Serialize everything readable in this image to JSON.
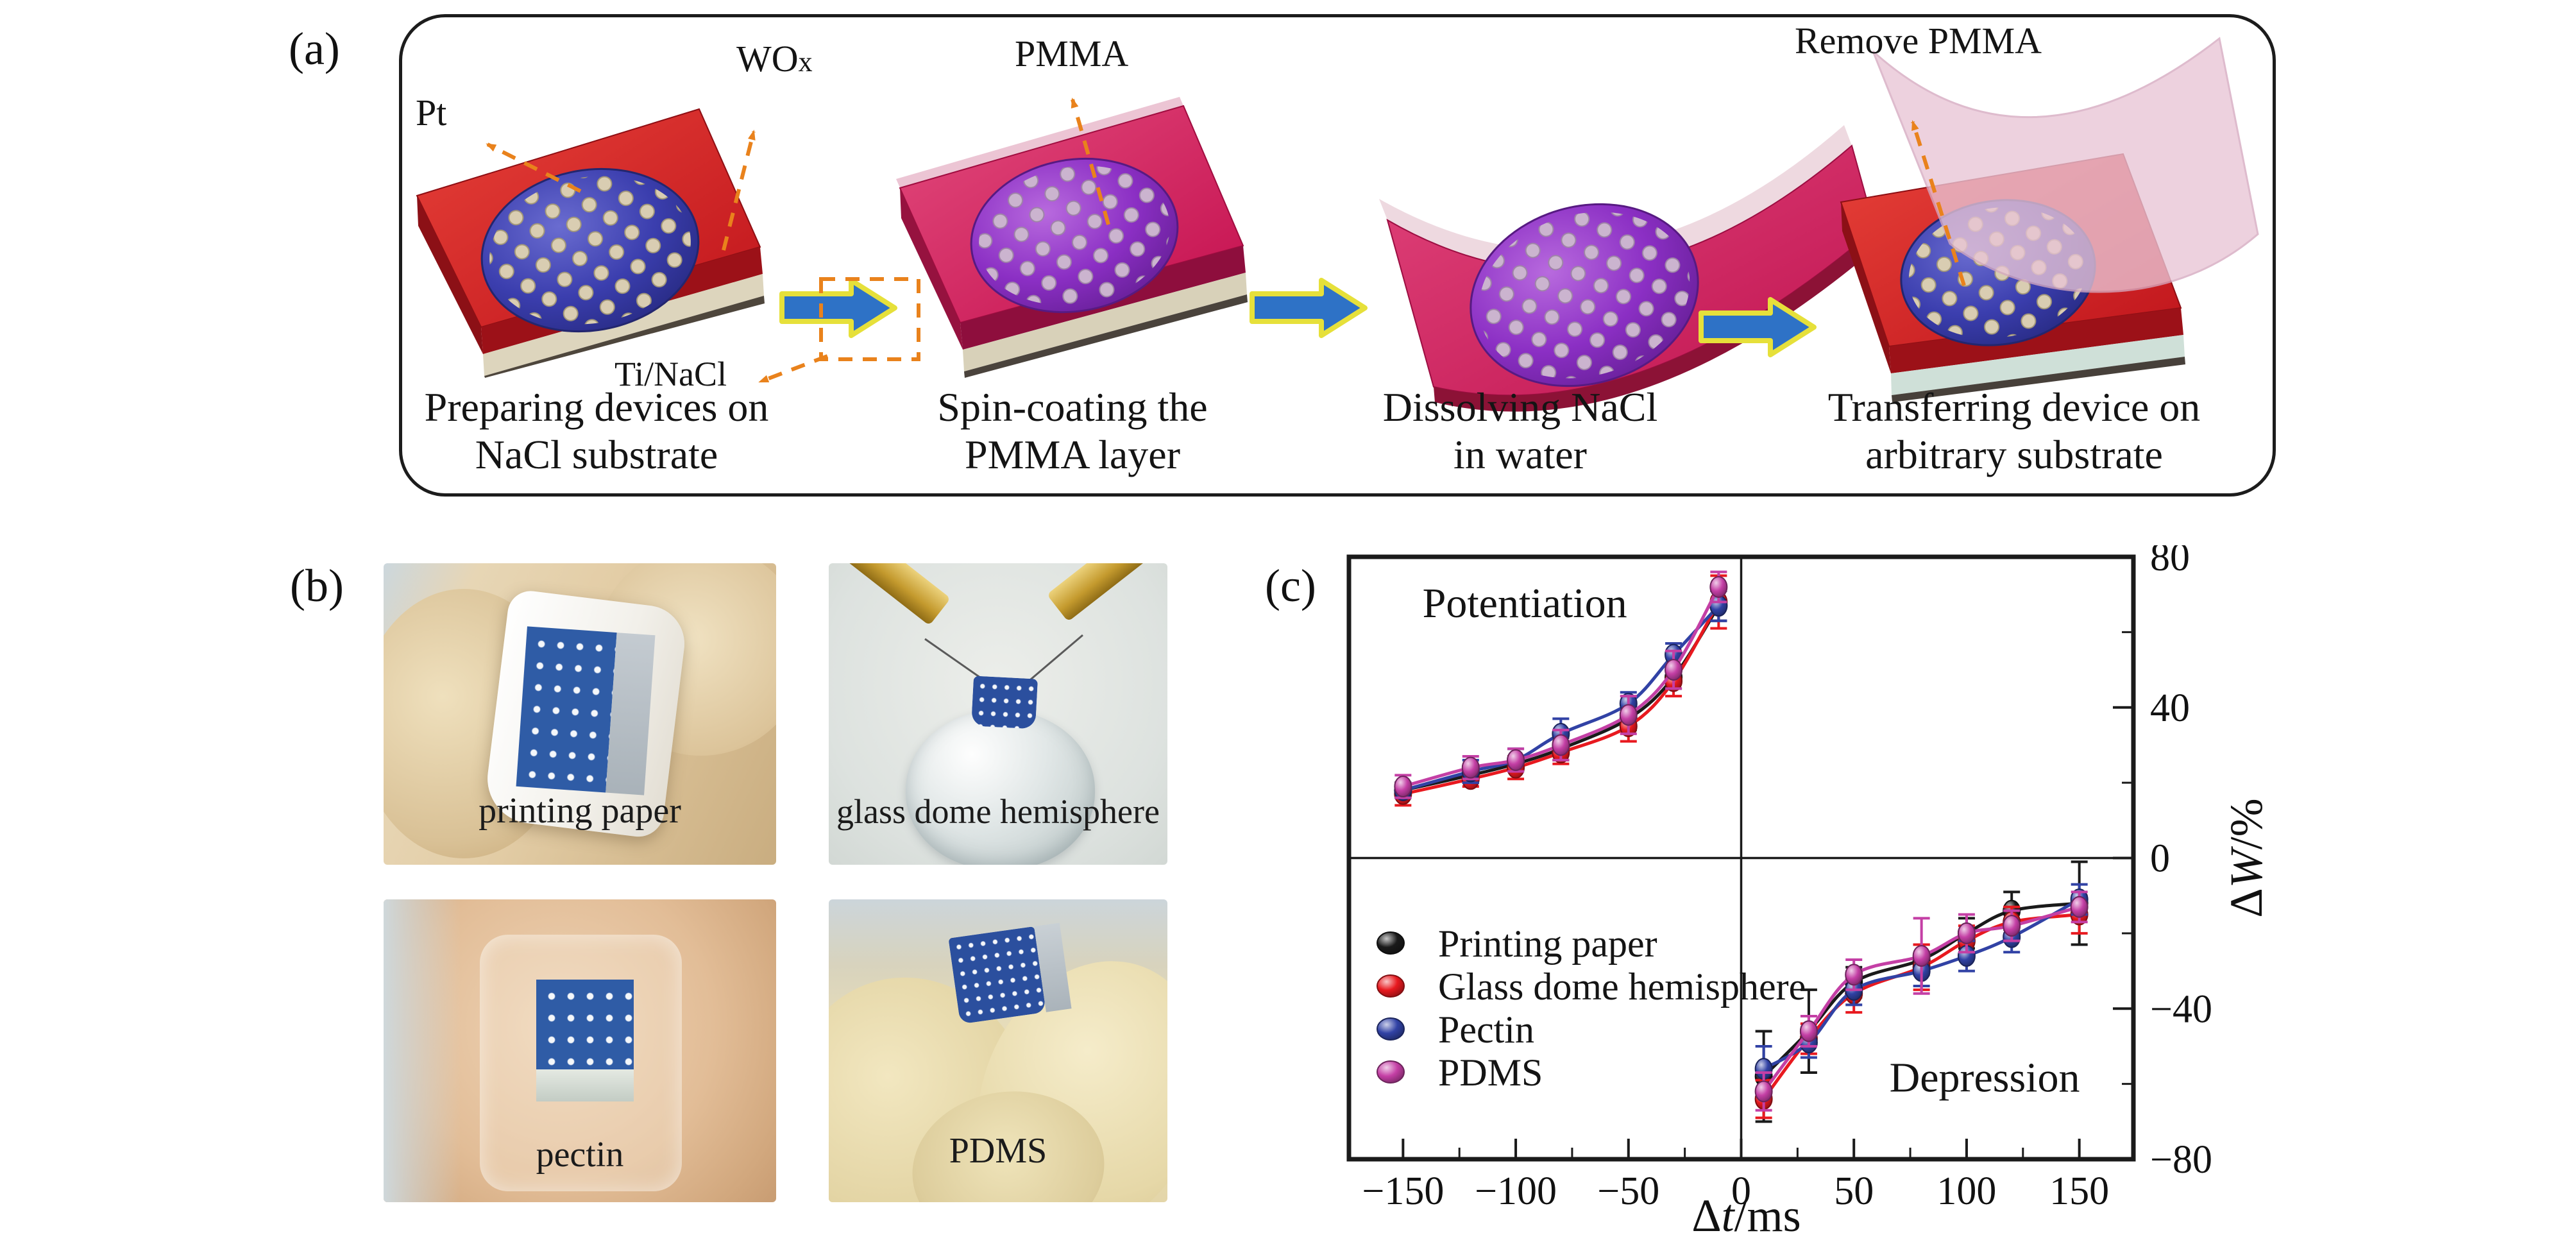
{
  "figure": {
    "background": "#ffffff",
    "accent_colors": {
      "process_arrow_fill": "#2e72c6",
      "process_arrow_outline": "#e6e03a",
      "annotation_orange": "#e9821c",
      "substrate_red": "#d31f26",
      "substrate_pink": "#d81b52",
      "wox_circle_blue": "#3b3eae",
      "pmma_circle_purple": "#8b2fc4",
      "nacl_layer_cream": "#ddd5bd"
    }
  },
  "panel_a": {
    "label": "(a)",
    "annotations": {
      "pt": "Pt",
      "wox_main": "WO",
      "wox_sub": "x",
      "ti_nacl": "Ti/NaCl",
      "pmma": "PMMA",
      "remove_pmma": "Remove PMMA"
    },
    "steps": [
      {
        "line1": "Preparing devices on",
        "line2": "NaCl substrate"
      },
      {
        "line1": "Spin-coating the",
        "line2": "PMMA layer"
      },
      {
        "line1": "Dissolving NaCl",
        "line2": "in water"
      },
      {
        "line1": "Transferring device on",
        "line2": "arbitrary substrate"
      }
    ]
  },
  "panel_b": {
    "label": "(b)",
    "photos": [
      {
        "caption": "printing paper"
      },
      {
        "caption": "glass dome hemisphere"
      },
      {
        "caption": "pectin"
      },
      {
        "caption": "PDMS"
      }
    ]
  },
  "panel_c": {
    "label": "(c)",
    "chart_data": {
      "type": "line",
      "xlabel": "Δt/ms",
      "ylabel": "ΔW/%",
      "xlim": [
        -174,
        174
      ],
      "ylim": [
        -80,
        80
      ],
      "x_major_ticks": [
        -150,
        -100,
        -50,
        0,
        50,
        100,
        150
      ],
      "x_minor_step": 25,
      "y_major_ticks": [
        -80,
        -40,
        0,
        40,
        80
      ],
      "y_minor_step": 20,
      "grid": false,
      "legend_position": "bottom-left",
      "quadrant_labels": [
        {
          "text": "Potentiation",
          "x": -96,
          "y": 64
        },
        {
          "text": "Depression",
          "x": 108,
          "y": -62
        }
      ],
      "series": [
        {
          "name": "Printing paper",
          "color": "#1a1a1a",
          "segments": [
            {
              "x": [
                -150,
                -120,
                -100,
                -80,
                -50,
                -30,
                -10
              ],
              "y": [
                18,
                22,
                25,
                29,
                37,
                48,
                67
              ],
              "err": [
                2,
                2,
                2,
                3,
                3,
                3,
                4
              ]
            },
            {
              "x": [
                10,
                30,
                50,
                80,
                100,
                120,
                150
              ],
              "y": [
                -58,
                -46,
                -33,
                -27,
                -20,
                -14,
                -12
              ],
              "err": [
                12,
                11,
                4,
                4,
                4,
                5,
                11
              ]
            }
          ]
        },
        {
          "name": "Glass dome hemisphere",
          "color": "#e8191f",
          "segments": [
            {
              "x": [
                -150,
                -120,
                -100,
                -80,
                -50,
                -30,
                -10
              ],
              "y": [
                17,
                21,
                24,
                28,
                35,
                47,
                68
              ],
              "err": [
                3,
                2,
                3,
                3,
                4,
                4,
                7
              ]
            },
            {
              "x": [
                10,
                30,
                50,
                80,
                100,
                120,
                150
              ],
              "y": [
                -64,
                -48,
                -36,
                -29,
                -22,
                -17,
                -15
              ],
              "err": [
                5,
                4,
                5,
                6,
                4,
                4,
                5
              ]
            }
          ]
        },
        {
          "name": "Pectin",
          "color": "#3142a5",
          "segments": [
            {
              "x": [
                -150,
                -120,
                -100,
                -80,
                -50,
                -30,
                -10
              ],
              "y": [
                18,
                23,
                26,
                33,
                41,
                54,
                67
              ],
              "err": [
                2,
                3,
                3,
                4,
                3,
                3,
                4
              ]
            },
            {
              "x": [
                10,
                30,
                50,
                80,
                100,
                120,
                150
              ],
              "y": [
                -56,
                -49,
                -35,
                -30,
                -26,
                -21,
                -11
              ],
              "err": [
                6,
                4,
                4,
                4,
                4,
                4,
                4
              ]
            }
          ]
        },
        {
          "name": "PDMS",
          "color": "#c43fa5",
          "segments": [
            {
              "x": [
                -150,
                -120,
                -100,
                -80,
                -50,
                -30,
                -10
              ],
              "y": [
                19,
                24,
                26,
                30,
                38,
                50,
                72
              ],
              "err": [
                3,
                3,
                3,
                4,
                5,
                5,
                4
              ]
            },
            {
              "x": [
                10,
                30,
                50,
                80,
                100,
                120,
                150
              ],
              "y": [
                -62,
                -46,
                -31,
                -26,
                -20,
                -18,
                -13
              ],
              "err": [
                5,
                4,
                4,
                10,
                5,
                4,
                4
              ]
            }
          ]
        }
      ]
    }
  }
}
